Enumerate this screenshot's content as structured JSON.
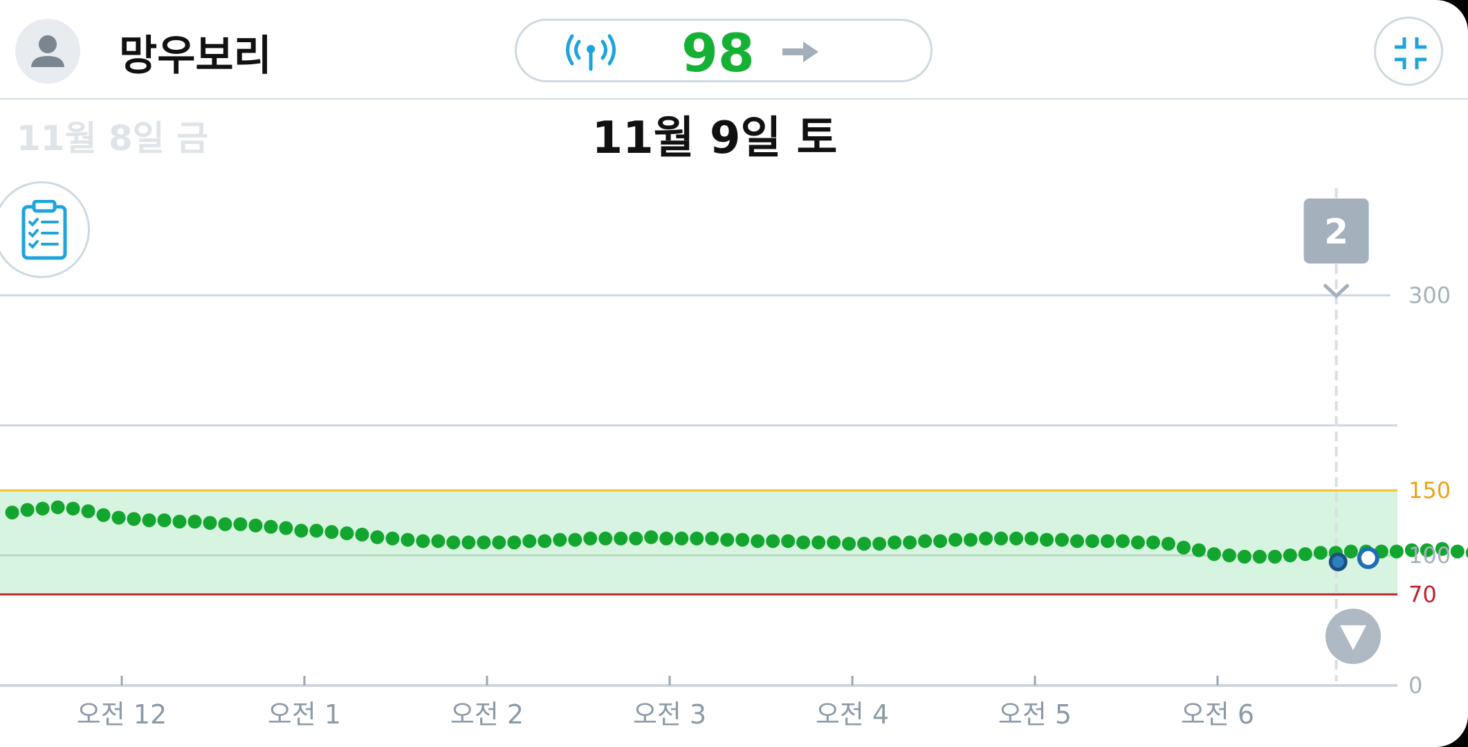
{
  "header": {
    "user_name": "망우보리",
    "glucose_value": "98",
    "signal_icon": "signal-broadcast-icon",
    "trend_icon": "arrow-right-icon",
    "collapse_icon": "collapse-icon",
    "avatar_icon": "person-icon"
  },
  "dates": {
    "previous": "11월 8일 금",
    "current": "11월 9일 토"
  },
  "log_button_icon": "clipboard-checklist-icon",
  "event_badge": "2",
  "colors": {
    "reading_green": "#12a62e",
    "high_threshold": "#f2c230",
    "low_threshold": "#c0202a",
    "target_band": "#d6f4df",
    "latest_marker": "#1f6eb3"
  },
  "chart_data": {
    "type": "scatter",
    "x_unit": "hours after midnight",
    "xlim": [
      -0.6,
      6.9
    ],
    "ylim": [
      0,
      300
    ],
    "y_ticks": [
      {
        "value": 300,
        "label": "300",
        "color": "#a5b1bc"
      },
      {
        "value": 150,
        "label": "150",
        "color": "#e8a317"
      },
      {
        "value": 100,
        "label": "100",
        "color": "#a5b1bc"
      },
      {
        "value": 70,
        "label": "70",
        "color": "#c0202a"
      },
      {
        "value": 0,
        "label": "0",
        "color": "#a5b1bc"
      }
    ],
    "x_ticks": [
      {
        "value": 0,
        "label": "오전 12"
      },
      {
        "value": 1,
        "label": "오전 1"
      },
      {
        "value": 2,
        "label": "오전 2"
      },
      {
        "value": 3,
        "label": "오전 3"
      },
      {
        "value": 4,
        "label": "오전 4"
      },
      {
        "value": 5,
        "label": "오전 5"
      },
      {
        "value": 6,
        "label": "오전 6"
      }
    ],
    "target_range": [
      70,
      150
    ],
    "gridlines": [
      300,
      200,
      100
    ],
    "event_marker_x": 6.65,
    "start_x": -0.6,
    "interval_hours": 0.0833,
    "values": [
      133,
      135,
      136,
      137,
      136,
      134,
      131,
      129,
      128,
      127,
      127,
      126,
      126,
      125,
      124,
      124,
      123,
      122,
      121,
      119,
      119,
      118,
      117,
      116,
      114,
      113,
      112,
      111,
      111,
      110,
      110,
      110,
      110,
      110,
      111,
      111,
      112,
      112,
      113,
      113,
      113,
      113,
      114,
      113,
      113,
      113,
      113,
      112,
      112,
      111,
      111,
      111,
      110,
      110,
      110,
      109,
      109,
      109,
      110,
      110,
      111,
      111,
      112,
      112,
      113,
      113,
      113,
      113,
      112,
      112,
      111,
      111,
      111,
      111,
      110,
      110,
      109,
      106,
      104,
      101,
      100,
      99,
      99,
      99,
      100,
      101,
      102,
      102,
      103,
      103,
      103,
      103,
      104,
      104,
      105,
      103,
      102,
      101,
      99
    ],
    "current": {
      "x": 6.825,
      "value": 98
    },
    "previous_marker": {
      "x": 6.66,
      "value": 95
    }
  }
}
